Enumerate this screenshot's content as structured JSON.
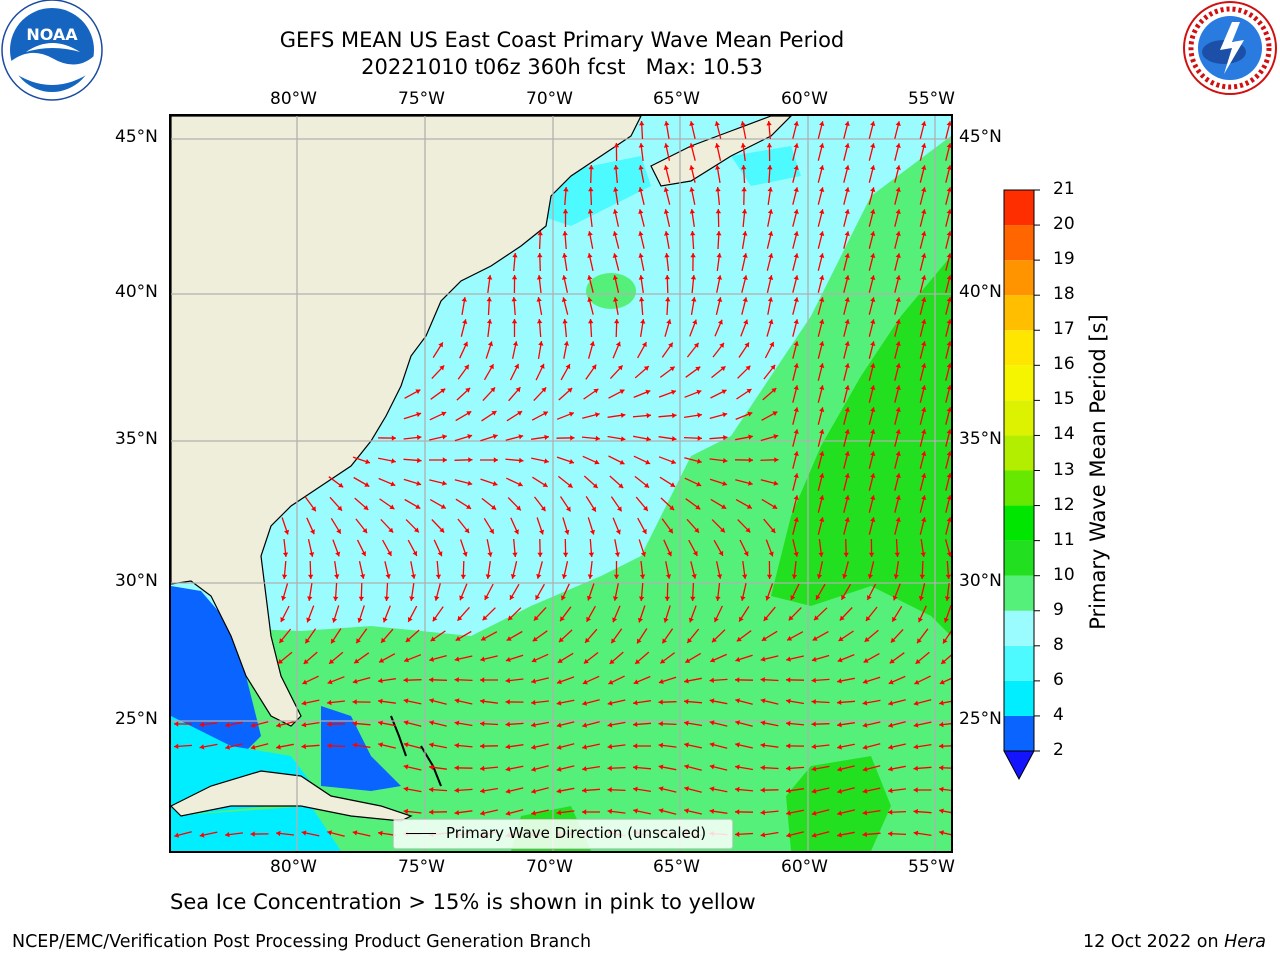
{
  "header": {
    "title_line1": "GEFS MEAN US East Coast Primary Wave Mean Period",
    "title_line2": "20221010 t06z 360h fcst   Max: 10.53"
  },
  "logos": {
    "left": "NOAA",
    "left_ring_text": "NATIONAL OCEANIC AND ATMOSPHERIC ADMINISTRATION · U.S. DEPARTMENT OF COMMERCE",
    "right_ring_text": "NATIONAL WEATHER SERVICE"
  },
  "map": {
    "lon_labels": [
      "80°W",
      "75°W",
      "70°W",
      "65°W",
      "60°W",
      "55°W"
    ],
    "lat_labels": [
      "45°N",
      "40°N",
      "35°N",
      "30°N",
      "25°N"
    ],
    "legend_label": "Primary Wave Direction (unscaled)",
    "arrow_color": "#ff0000",
    "land_color": "#efeedb"
  },
  "colorbar": {
    "label": "Primary Wave Mean Period [s]",
    "ticks": [
      "2",
      "4",
      "6",
      "8",
      "9",
      "10",
      "11",
      "12",
      "13",
      "14",
      "15",
      "16",
      "17",
      "18",
      "19",
      "20",
      "21"
    ],
    "colors": [
      "#0a64ff",
      "#00eeff",
      "#4dfaff",
      "#9afcff",
      "#55f07a",
      "#22e01f",
      "#00e600",
      "#66e800",
      "#b3ee00",
      "#ddf200",
      "#f5f500",
      "#ffe600",
      "#ffbf00",
      "#ff9300",
      "#ff6600",
      "#ff2e00"
    ],
    "under_color": "#1414ff"
  },
  "caption": "Sea Ice Concentration > 15% is shown in pink to yellow",
  "footer": {
    "left": "NCEP/EMC/Verification Post Processing Product Generation Branch",
    "date": "12 Oct 2022 on ",
    "machine": "Hera"
  }
}
